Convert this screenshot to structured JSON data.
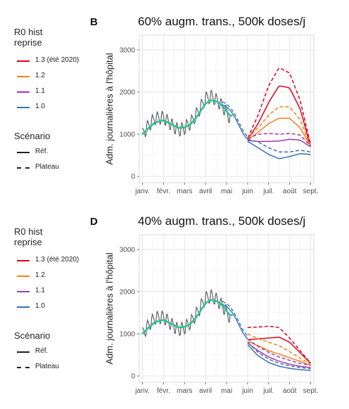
{
  "legend": {
    "r0_title_line1": "R0 hist",
    "r0_title_line2": "reprise",
    "items": [
      {
        "label": "1.3 (été 2020)",
        "color": "#e2001a"
      },
      {
        "label": "1.2",
        "color": "#f3811f"
      },
      {
        "label": "1.1",
        "color": "#9e3dae"
      },
      {
        "label": "1.0",
        "color": "#3a6fb4"
      }
    ],
    "scenario_title": "Scénario",
    "scenario_items": [
      {
        "label": "Réf.",
        "style": "solid"
      },
      {
        "label": "Plateau",
        "style": "dashed"
      }
    ]
  },
  "colors": {
    "observed": "#555555",
    "smoothed": "#2ec295",
    "forecast_common": "#3a6fb4"
  },
  "chart_data": [
    {
      "type": "line",
      "panel_letter": "B",
      "title": "60% augm. trans., 500k doses/j",
      "ylabel": "Adm. journalières à l'hôpital",
      "xlabel": "",
      "x_tick_labels": [
        "janv.",
        "févr.",
        "mars",
        "avril",
        "mai",
        "juin",
        "juil.",
        "août",
        "sept."
      ],
      "x_tick_months": [
        0,
        1,
        2,
        3,
        4,
        5,
        6,
        7,
        8
      ],
      "xlim": [
        -0.15,
        8.15
      ],
      "y_ticks": [
        0,
        1000,
        2000,
        3000
      ],
      "ylim": [
        -150,
        3350
      ],
      "grid": true,
      "observed_series": {
        "name": "observed",
        "x": [
          0,
          0.3,
          0.6,
          1.0,
          1.4,
          1.7,
          2.0,
          2.3,
          2.6,
          3.0,
          3.3,
          3.6,
          3.9,
          4.15
        ],
        "y": [
          1000,
          1220,
          1380,
          1400,
          1220,
          1100,
          1150,
          1280,
          1500,
          1850,
          1900,
          1780,
          1600,
          1400
        ],
        "amplitude": 280
      },
      "smoothed_series": {
        "x": [
          0,
          0.3,
          0.6,
          1.0,
          1.4,
          1.7,
          2.0,
          2.3,
          2.6,
          3.0,
          3.3,
          3.6,
          3.9,
          4.1,
          4.2,
          4.25
        ],
        "y": [
          1000,
          1150,
          1280,
          1330,
          1230,
          1150,
          1160,
          1240,
          1420,
          1730,
          1810,
          1760,
          1620,
          1480,
          1420,
          1450
        ]
      },
      "common_forecast": {
        "x": [
          3.8,
          4.0,
          4.2,
          4.4,
          4.6,
          4.8,
          5.0
        ],
        "y": [
          1700,
          1650,
          1550,
          1400,
          1200,
          1000,
          870
        ]
      },
      "series": [
        {
          "name": "1.3 (été 2020)",
          "scenario": "Réf.",
          "x": [
            5,
            5.5,
            6,
            6.5,
            7,
            7.5,
            8
          ],
          "y": [
            870,
            1250,
            1750,
            2150,
            2100,
            1600,
            700
          ]
        },
        {
          "name": "1.3 (été 2020)",
          "scenario": "Plateau",
          "x": [
            5,
            5.5,
            6,
            6.5,
            7,
            7.5,
            8
          ],
          "y": [
            900,
            1450,
            2150,
            2580,
            2450,
            1800,
            750
          ]
        },
        {
          "name": "1.2",
          "scenario": "Réf.",
          "x": [
            5,
            5.5,
            6,
            6.5,
            7,
            7.5,
            8
          ],
          "y": [
            860,
            1050,
            1250,
            1380,
            1380,
            1150,
            720
          ]
        },
        {
          "name": "1.2",
          "scenario": "Plateau",
          "x": [
            5,
            5.5,
            6,
            6.5,
            7,
            7.5,
            8
          ],
          "y": [
            900,
            1150,
            1450,
            1650,
            1650,
            1350,
            700
          ]
        },
        {
          "name": "1.1",
          "scenario": "Réf.",
          "x": [
            5,
            5.5,
            6,
            6.5,
            7,
            7.5,
            8
          ],
          "y": [
            850,
            830,
            830,
            840,
            880,
            860,
            700
          ]
        },
        {
          "name": "1.1",
          "scenario": "Plateau",
          "x": [
            5,
            5.5,
            6,
            6.5,
            7,
            7.5,
            8
          ],
          "y": [
            900,
            1000,
            1020,
            1000,
            1020,
            980,
            720
          ]
        },
        {
          "name": "1.0",
          "scenario": "Réf.",
          "x": [
            5,
            5.5,
            6,
            6.5,
            7,
            7.5,
            8
          ],
          "y": [
            830,
            680,
            520,
            420,
            470,
            540,
            520
          ]
        },
        {
          "name": "1.0",
          "scenario": "Plateau",
          "x": [
            5,
            5.5,
            6,
            6.5,
            7,
            7.5,
            8
          ],
          "y": [
            880,
            820,
            680,
            580,
            580,
            620,
            580
          ]
        }
      ]
    },
    {
      "type": "line",
      "panel_letter": "D",
      "title": "40% augm. trans., 500k doses/j",
      "ylabel": "Adm. journalières à l'hôpital",
      "xlabel": "",
      "x_tick_labels": [
        "janv.",
        "févr.",
        "mars",
        "avril",
        "mai",
        "juin",
        "juil.",
        "août",
        "sept."
      ],
      "x_tick_months": [
        0,
        1,
        2,
        3,
        4,
        5,
        6,
        7,
        8
      ],
      "xlim": [
        -0.15,
        8.15
      ],
      "y_ticks": [
        0,
        1000,
        2000,
        3000
      ],
      "ylim": [
        -150,
        3350
      ],
      "grid": true,
      "observed_series": {
        "name": "observed",
        "x": [
          0,
          0.3,
          0.6,
          1.0,
          1.4,
          1.7,
          2.0,
          2.3,
          2.6,
          3.0,
          3.3,
          3.6,
          3.9,
          4.15
        ],
        "y": [
          1000,
          1220,
          1380,
          1400,
          1220,
          1100,
          1150,
          1280,
          1500,
          1850,
          1900,
          1780,
          1600,
          1400
        ],
        "amplitude": 280
      },
      "smoothed_series": {
        "x": [
          0,
          0.3,
          0.6,
          1.0,
          1.4,
          1.7,
          2.0,
          2.3,
          2.6,
          3.0,
          3.3,
          3.6,
          3.9,
          4.1,
          4.2,
          4.25
        ],
        "y": [
          1000,
          1150,
          1280,
          1330,
          1230,
          1150,
          1160,
          1240,
          1420,
          1730,
          1810,
          1760,
          1620,
          1480,
          1420,
          1450
        ]
      },
      "common_forecast": {
        "x": [
          3.8,
          4.0,
          4.2,
          4.4,
          4.6,
          4.8,
          5.0
        ],
        "y": [
          1700,
          1650,
          1550,
          1400,
          1200,
          1000,
          870
        ]
      },
      "series": [
        {
          "name": "1.3 (été 2020)",
          "scenario": "Réf.",
          "x": [
            5,
            5.5,
            6,
            6.5,
            7,
            7.5,
            8
          ],
          "y": [
            860,
            880,
            900,
            920,
            800,
            550,
            300
          ]
        },
        {
          "name": "1.3 (été 2020)",
          "scenario": "Plateau",
          "x": [
            5,
            5.5,
            6,
            6.5,
            7,
            7.5,
            8
          ],
          "y": [
            1150,
            1160,
            1180,
            1150,
            900,
            600,
            300
          ]
        },
        {
          "name": "1.2",
          "scenario": "Réf.",
          "x": [
            5,
            5.5,
            6,
            6.5,
            7,
            7.5,
            8
          ],
          "y": [
            820,
            720,
            600,
            520,
            430,
            350,
            250
          ]
        },
        {
          "name": "1.2",
          "scenario": "Plateau",
          "x": [
            5,
            5.5,
            6,
            6.5,
            7,
            7.5,
            8
          ],
          "y": [
            1000,
            880,
            800,
            720,
            580,
            420,
            280
          ]
        },
        {
          "name": "1.1",
          "scenario": "Réf.",
          "x": [
            5,
            5.5,
            6,
            6.5,
            7,
            7.5,
            8
          ],
          "y": [
            780,
            600,
            450,
            350,
            280,
            230,
            200
          ]
        },
        {
          "name": "1.1",
          "scenario": "Plateau",
          "x": [
            5,
            5.5,
            6,
            6.5,
            7,
            7.5,
            8
          ],
          "y": [
            880,
            700,
            560,
            450,
            370,
            300,
            250
          ]
        },
        {
          "name": "1.0",
          "scenario": "Réf.",
          "x": [
            5,
            5.5,
            6,
            6.5,
            7,
            7.5,
            8
          ],
          "y": [
            740,
            480,
            320,
            230,
            180,
            150,
            130
          ]
        },
        {
          "name": "1.0",
          "scenario": "Plateau",
          "x": [
            5,
            5.5,
            6,
            6.5,
            7,
            7.5,
            8
          ],
          "y": [
            800,
            560,
            400,
            300,
            240,
            200,
            170
          ]
        }
      ]
    }
  ]
}
